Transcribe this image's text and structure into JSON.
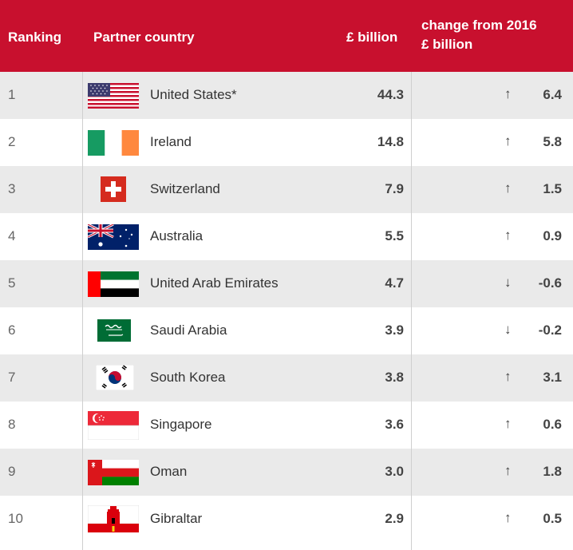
{
  "table": {
    "header": {
      "ranking": "Ranking",
      "partner": "Partner country",
      "billion": "£ billion",
      "change_line1": "change from 2016",
      "change_line2": "£ billion"
    },
    "rows": [
      {
        "rank": "1",
        "country": "United States*",
        "flag": "us-flag",
        "value": "44.3",
        "direction": "↑",
        "change": "6.4"
      },
      {
        "rank": "2",
        "country": "Ireland",
        "flag": "ireland-flag",
        "value": "14.8",
        "direction": "↑",
        "change": "5.8"
      },
      {
        "rank": "3",
        "country": "Switzerland",
        "flag": "switzerland-flag",
        "value": "7.9",
        "direction": "↑",
        "change": "1.5"
      },
      {
        "rank": "4",
        "country": "Australia",
        "flag": "australia-flag",
        "value": "5.5",
        "direction": "↑",
        "change": "0.9"
      },
      {
        "rank": "5",
        "country": "United Arab Emirates",
        "flag": "uae-flag",
        "value": "4.7",
        "direction": "↓",
        "change": "-0.6"
      },
      {
        "rank": "6",
        "country": "Saudi Arabia",
        "flag": "saudi-flag",
        "value": "3.9",
        "direction": "↓",
        "change": "-0.2"
      },
      {
        "rank": "7",
        "country": "South Korea",
        "flag": "south-korea-flag",
        "value": "3.8",
        "direction": "↑",
        "change": "3.1"
      },
      {
        "rank": "8",
        "country": "Singapore",
        "flag": "singapore-flag",
        "value": "3.6",
        "direction": "↑",
        "change": "0.6"
      },
      {
        "rank": "9",
        "country": "Oman",
        "flag": "oman-flag",
        "value": "3.0",
        "direction": "↑",
        "change": "1.8"
      },
      {
        "rank": "10",
        "country": "Gibraltar",
        "flag": "gibraltar-flag",
        "value": "2.9",
        "direction": "↑",
        "change": "0.5"
      }
    ]
  },
  "colors": {
    "header_bg": "#c8102e",
    "alt_row": "#eaeaea"
  }
}
